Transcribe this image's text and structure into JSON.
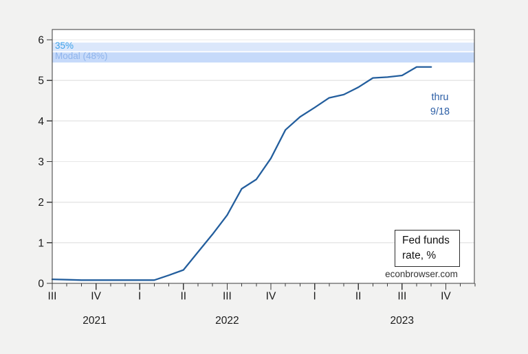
{
  "figure": {
    "source_label": "econbrowser.com",
    "legend_box": {
      "line1": "Fed funds",
      "line2": "rate, %"
    }
  },
  "chart_data": {
    "type": "line",
    "title": "",
    "xlabel": "",
    "ylabel": "Fed funds rate, %",
    "ylim": [
      0,
      6.25
    ],
    "yticks": [
      0,
      1,
      2,
      3,
      4,
      5,
      6
    ],
    "grid": "horizontal",
    "x_frequency": "monthly",
    "x": [
      "2021-07",
      "2021-08",
      "2021-09",
      "2021-10",
      "2021-11",
      "2021-12",
      "2022-01",
      "2022-02",
      "2022-03",
      "2022-04",
      "2022-05",
      "2022-06",
      "2022-07",
      "2022-08",
      "2022-09",
      "2022-10",
      "2022-11",
      "2022-12",
      "2023-01",
      "2023-02",
      "2023-03",
      "2023-04",
      "2023-05",
      "2023-06",
      "2023-07",
      "2023-08",
      "2023-09"
    ],
    "series": [
      {
        "name": "Fed funds rate, %",
        "color": "#235e9d",
        "values": [
          0.1,
          0.09,
          0.08,
          0.08,
          0.08,
          0.08,
          0.08,
          0.08,
          0.2,
          0.33,
          0.77,
          1.21,
          1.68,
          2.33,
          2.56,
          3.08,
          3.78,
          4.1,
          4.33,
          4.57,
          4.65,
          4.83,
          5.06,
          5.08,
          5.12,
          5.33,
          5.33
        ]
      }
    ],
    "bands": [
      {
        "label": "35%",
        "from": 5.72,
        "to": 5.93,
        "fill": "#dbe7fb",
        "label_color": "#3ea2e9"
      },
      {
        "label": "Modal (48%)",
        "from": 5.44,
        "to": 5.69,
        "fill": "#c6dafa",
        "label_color": "#8fb4ec"
      }
    ],
    "annotation": {
      "lines": [
        "thru",
        "9/18"
      ],
      "color": "#2d5fa6"
    },
    "x_quarter_ticks": [
      {
        "month": 0,
        "label": "III"
      },
      {
        "month": 3,
        "label": "IV"
      },
      {
        "month": 6,
        "label": "I"
      },
      {
        "month": 9,
        "label": "II"
      },
      {
        "month": 12,
        "label": "III"
      },
      {
        "month": 15,
        "label": "IV"
      },
      {
        "month": 18,
        "label": "I"
      },
      {
        "month": 21,
        "label": "II"
      },
      {
        "month": 24,
        "label": "III"
      },
      {
        "month": 27,
        "label": "IV"
      }
    ],
    "year_labels": [
      {
        "label": "2021",
        "month": 2.9
      },
      {
        "label": "2022",
        "month": 12.0
      },
      {
        "label": "2023",
        "month": 24.0
      }
    ]
  }
}
